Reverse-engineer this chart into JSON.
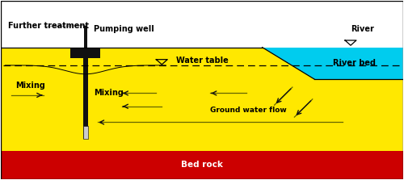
{
  "bg_color": "#ffffff",
  "ground_color": "#FFE800",
  "bedrock_color": "#CC0000",
  "river_color": "#00CCEE",
  "well_color": "#111111",
  "well_screen_color": "#CCCCCC",
  "arrow_color": "#666600",
  "arrow_black": "#111111",
  "dashed_line_color": "#000000",
  "border_color": "#000000",
  "labels": {
    "further_treatment": "Further treatment",
    "pumping_well": "Pumping well",
    "water_table": "Water table",
    "river": "River",
    "river_bed": "River bed",
    "mixing1": "Mixing",
    "mixing2": "Mixing",
    "ground_water_flow": "Ground water flow",
    "bed_rock": "Bed rock"
  }
}
